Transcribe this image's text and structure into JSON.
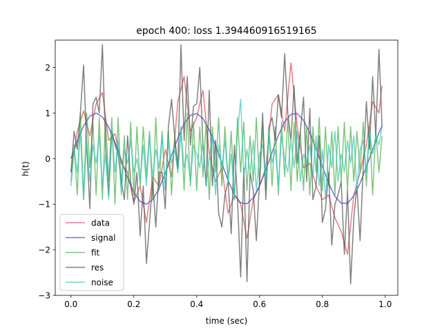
{
  "chart_data": {
    "type": "line",
    "title": "epoch 400: loss 1.394460916519165",
    "xlabel": "time (sec)",
    "ylabel": "h(t)",
    "xlim": [
      -0.05,
      1.04
    ],
    "ylim": [
      -3.0,
      2.6
    ],
    "xticks": [
      0.0,
      0.2,
      0.4,
      0.6,
      0.8,
      1.0
    ],
    "xtick_labels": [
      "0.0",
      "0.2",
      "0.4",
      "0.6",
      "0.8",
      "1.0"
    ],
    "yticks": [
      -3,
      -2,
      -1,
      0,
      1,
      2
    ],
    "ytick_labels": [
      "−3",
      "−2",
      "−1",
      "0",
      "1",
      "2"
    ],
    "grid": false,
    "legend_position": "lower-left",
    "series": [
      {
        "name": "data",
        "color": "#e05050",
        "opacity": 0.75,
        "x": [
          0.0,
          0.02,
          0.04,
          0.06,
          0.08,
          0.1,
          0.12,
          0.14,
          0.16,
          0.18,
          0.2,
          0.22,
          0.24,
          0.26,
          0.28,
          0.3,
          0.32,
          0.34,
          0.36,
          0.38,
          0.4,
          0.42,
          0.44,
          0.46,
          0.48,
          0.5,
          0.52,
          0.54,
          0.56,
          0.58,
          0.6,
          0.62,
          0.64,
          0.66,
          0.68,
          0.7,
          0.72,
          0.74,
          0.76,
          0.78,
          0.8,
          0.82,
          0.84,
          0.86,
          0.88,
          0.9,
          0.92,
          0.94,
          0.96,
          0.98,
          0.99
        ],
        "y": [
          -0.3,
          0.6,
          1.05,
          0.5,
          1.2,
          1.45,
          0.4,
          0.55,
          -0.1,
          -0.3,
          -0.95,
          -0.6,
          -1.4,
          -0.4,
          -0.6,
          0.2,
          -0.4,
          1.25,
          1.8,
          0.6,
          0.9,
          1.5,
          0.1,
          -0.5,
          -0.2,
          -1.2,
          -0.8,
          -1.0,
          -1.75,
          -0.9,
          -0.6,
          -0.2,
          1.2,
          1.4,
          0.6,
          2.1,
          0.7,
          -0.2,
          -0.1,
          -0.6,
          -0.9,
          -0.8,
          -1.3,
          -1.6,
          -2.1,
          -0.8,
          -0.3,
          0.3,
          1.25,
          1.0,
          1.6
        ]
      },
      {
        "name": "signal",
        "color": "#4b4bd6",
        "opacity": 0.8,
        "x": [
          0.0,
          0.02,
          0.04,
          0.06,
          0.08,
          0.1,
          0.12,
          0.14,
          0.16,
          0.18,
          0.2,
          0.22,
          0.24,
          0.26,
          0.28,
          0.3,
          0.32,
          0.34,
          0.36,
          0.38,
          0.4,
          0.42,
          0.44,
          0.46,
          0.48,
          0.5,
          0.52,
          0.54,
          0.56,
          0.58,
          0.6,
          0.62,
          0.64,
          0.66,
          0.68,
          0.7,
          0.72,
          0.74,
          0.76,
          0.78,
          0.8,
          0.82,
          0.84,
          0.86,
          0.88,
          0.9,
          0.92,
          0.94,
          0.96,
          0.98,
          0.99
        ],
        "y": [
          0.0,
          0.39,
          0.72,
          0.93,
          1.0,
          0.91,
          0.69,
          0.36,
          -0.03,
          -0.42,
          -0.74,
          -0.94,
          -1.0,
          -0.9,
          -0.66,
          -0.32,
          0.07,
          0.45,
          0.77,
          0.95,
          0.99,
          0.88,
          0.63,
          0.29,
          -0.1,
          -0.48,
          -0.79,
          -0.97,
          -0.99,
          -0.86,
          -0.6,
          -0.25,
          0.14,
          0.51,
          0.81,
          0.97,
          0.99,
          0.84,
          0.57,
          0.22,
          -0.17,
          -0.54,
          -0.83,
          -0.98,
          -0.98,
          -0.82,
          -0.54,
          -0.18,
          0.2,
          0.57,
          0.72
        ]
      },
      {
        "name": "fit",
        "color": "#3aa63a",
        "opacity": 0.65,
        "x": [
          0.0,
          0.01,
          0.02,
          0.03,
          0.04,
          0.05,
          0.06,
          0.07,
          0.08,
          0.09,
          0.1,
          0.11,
          0.12,
          0.13,
          0.14,
          0.15,
          0.16,
          0.17,
          0.18,
          0.19,
          0.2,
          0.21,
          0.22,
          0.23,
          0.24,
          0.25,
          0.26,
          0.27,
          0.28,
          0.29,
          0.3,
          0.31,
          0.32,
          0.33,
          0.34,
          0.35,
          0.36,
          0.37,
          0.38,
          0.39,
          0.4,
          0.41,
          0.42,
          0.43,
          0.44,
          0.45,
          0.46,
          0.47,
          0.48,
          0.49,
          0.5,
          0.51,
          0.52,
          0.53,
          0.54,
          0.55,
          0.56,
          0.57,
          0.58,
          0.59,
          0.6,
          0.61,
          0.62,
          0.63,
          0.64,
          0.65,
          0.66,
          0.67,
          0.68,
          0.69,
          0.7,
          0.71,
          0.72,
          0.73,
          0.74,
          0.75,
          0.76,
          0.77,
          0.78,
          0.79,
          0.8,
          0.81,
          0.82,
          0.83,
          0.84,
          0.85,
          0.86,
          0.87,
          0.88,
          0.89,
          0.9,
          0.91,
          0.92,
          0.93,
          0.94,
          0.95,
          0.96,
          0.97,
          0.98,
          0.99
        ],
        "y": [
          -0.5,
          0.3,
          -0.8,
          1.0,
          -0.9,
          1.0,
          -0.2,
          0.8,
          -0.8,
          0.9,
          -0.9,
          0.9,
          -0.5,
          0.9,
          -1.0,
          0.9,
          -0.6,
          0.5,
          -0.9,
          0.8,
          -0.8,
          0.7,
          -0.6,
          0.7,
          -0.4,
          0.6,
          -0.9,
          0.9,
          -0.7,
          0.6,
          -0.7,
          0.6,
          -0.8,
          0.5,
          -0.3,
          0.7,
          -0.7,
          1.0,
          -0.6,
          0.8,
          -0.7,
          0.7,
          -0.4,
          0.8,
          -0.9,
          0.7,
          -0.3,
          0.9,
          -0.6,
          0.7,
          -0.5,
          0.6,
          -0.9,
          0.9,
          -0.3,
          0.8,
          -0.7,
          0.5,
          -0.5,
          0.9,
          -0.6,
          0.7,
          -0.7,
          0.6,
          -0.6,
          0.7,
          -0.8,
          0.8,
          -0.4,
          0.9,
          -0.7,
          0.8,
          -0.5,
          0.6,
          -0.7,
          0.7,
          -0.8,
          0.7,
          -0.3,
          0.9,
          -0.7,
          0.7,
          -0.6,
          0.6,
          -0.8,
          0.7,
          -0.5,
          0.8,
          -0.7,
          0.7,
          -0.5,
          0.6,
          -0.3,
          0.8,
          -0.6,
          0.7,
          -0.8,
          0.6,
          -0.3,
          0.5
        ]
      },
      {
        "name": "res",
        "color": "#555555",
        "opacity": 0.75,
        "x": [
          0.0,
          0.01,
          0.02,
          0.03,
          0.04,
          0.05,
          0.06,
          0.07,
          0.08,
          0.09,
          0.1,
          0.11,
          0.12,
          0.13,
          0.14,
          0.15,
          0.16,
          0.17,
          0.18,
          0.19,
          0.2,
          0.21,
          0.22,
          0.23,
          0.24,
          0.25,
          0.26,
          0.27,
          0.28,
          0.29,
          0.3,
          0.31,
          0.32,
          0.33,
          0.34,
          0.35,
          0.36,
          0.37,
          0.38,
          0.39,
          0.4,
          0.41,
          0.42,
          0.43,
          0.44,
          0.45,
          0.46,
          0.47,
          0.48,
          0.49,
          0.5,
          0.51,
          0.52,
          0.53,
          0.54,
          0.55,
          0.56,
          0.57,
          0.58,
          0.59,
          0.6,
          0.61,
          0.62,
          0.63,
          0.64,
          0.65,
          0.66,
          0.67,
          0.68,
          0.69,
          0.7,
          0.71,
          0.72,
          0.73,
          0.74,
          0.75,
          0.76,
          0.77,
          0.78,
          0.79,
          0.8,
          0.81,
          0.82,
          0.83,
          0.84,
          0.85,
          0.86,
          0.87,
          0.88,
          0.89,
          0.9,
          0.91,
          0.92,
          0.93,
          0.94,
          0.95,
          0.96,
          0.97,
          0.98,
          0.99
        ],
        "y": [
          -0.3,
          0.6,
          0.2,
          1.0,
          2.05,
          0.3,
          -1.1,
          1.2,
          1.35,
          1.0,
          2.5,
          0.3,
          -0.8,
          0.6,
          0.3,
          0.1,
          -0.5,
          -0.9,
          0.5,
          -0.5,
          -1.0,
          -0.3,
          -1.7,
          -0.6,
          -2.3,
          -1.4,
          -0.5,
          -1.5,
          -0.3,
          -0.3,
          -1.1,
          0.7,
          1.3,
          0.5,
          -0.2,
          2.5,
          0.4,
          1.8,
          0.3,
          1.15,
          1.2,
          2.0,
          0.3,
          -0.6,
          1.5,
          -0.6,
          0.4,
          -1.2,
          -1.5,
          -0.8,
          -0.5,
          -1.65,
          0.3,
          -0.9,
          -2.6,
          -0.2,
          -2.7,
          -0.3,
          -0.7,
          -1.8,
          -0.5,
          1.0,
          -0.9,
          0.7,
          0.9,
          0.4,
          1.4,
          0.9,
          2.3,
          1.0,
          0.4,
          1.6,
          -0.1,
          0.6,
          1.35,
          -0.5,
          1.1,
          -0.9,
          -0.6,
          0.5,
          -1.4,
          -1.1,
          -0.3,
          -1.9,
          -1.0,
          -0.8,
          -0.5,
          -2.1,
          -0.7,
          -2.75,
          -1.3,
          -0.6,
          -1.8,
          -0.2,
          1.25,
          0.2,
          1.8,
          0.5,
          2.4,
          0.7
        ]
      },
      {
        "name": "noise",
        "color": "#30c8b8",
        "opacity": 0.7,
        "x": [
          0.0,
          0.01,
          0.02,
          0.03,
          0.04,
          0.05,
          0.06,
          0.07,
          0.08,
          0.09,
          0.1,
          0.11,
          0.12,
          0.13,
          0.14,
          0.15,
          0.16,
          0.17,
          0.18,
          0.19,
          0.2,
          0.21,
          0.22,
          0.23,
          0.24,
          0.25,
          0.26,
          0.27,
          0.28,
          0.29,
          0.3,
          0.31,
          0.32,
          0.33,
          0.34,
          0.35,
          0.36,
          0.37,
          0.38,
          0.39,
          0.4,
          0.41,
          0.42,
          0.43,
          0.44,
          0.45,
          0.46,
          0.47,
          0.48,
          0.49,
          0.5,
          0.51,
          0.52,
          0.53,
          0.54,
          0.55,
          0.56,
          0.57,
          0.58,
          0.59,
          0.6,
          0.61,
          0.62,
          0.63,
          0.64,
          0.65,
          0.66,
          0.67,
          0.68,
          0.69,
          0.7,
          0.71,
          0.72,
          0.73,
          0.74,
          0.75,
          0.76,
          0.77,
          0.78,
          0.79,
          0.8,
          0.81,
          0.82,
          0.83,
          0.84,
          0.85,
          0.86,
          0.87,
          0.88,
          0.89,
          0.9,
          0.91,
          0.92,
          0.93,
          0.94,
          0.95,
          0.96,
          0.97,
          0.98,
          0.99
        ],
        "y": [
          -0.6,
          0.2,
          -0.3,
          0.6,
          -0.9,
          0.4,
          -0.5,
          0.3,
          -0.1,
          0.5,
          -0.6,
          0.1,
          -0.9,
          0.6,
          -0.3,
          0.4,
          -0.8,
          0.2,
          -0.1,
          0.4,
          -0.3,
          0.0,
          -0.5,
          0.3,
          -0.6,
          0.5,
          -0.4,
          0.2,
          -0.2,
          0.5,
          -0.7,
          0.4,
          -0.1,
          0.2,
          -0.3,
          0.6,
          -0.2,
          0.1,
          -0.5,
          0.3,
          0.1,
          -0.2,
          0.4,
          -0.6,
          0.0,
          0.5,
          -0.8,
          0.3,
          -0.2,
          0.4,
          -0.5,
          0.1,
          -0.9,
          0.6,
          1.3,
          -0.4,
          0.2,
          -0.3,
          0.4,
          -0.7,
          0.1,
          0.3,
          -0.5,
          0.6,
          -0.1,
          0.2,
          -0.6,
          0.5,
          0.0,
          -0.3,
          0.4,
          -0.2,
          0.6,
          -0.5,
          0.1,
          -0.1,
          0.3,
          -0.4,
          0.5,
          -0.6,
          0.2,
          -0.9,
          0.3,
          -0.2,
          0.6,
          -0.5,
          0.1,
          -0.3,
          0.4,
          -0.1,
          0.5,
          -0.7,
          0.2,
          0.4,
          -0.3,
          0.6,
          0.1,
          0.5,
          0.3,
          0.7
        ]
      }
    ]
  }
}
